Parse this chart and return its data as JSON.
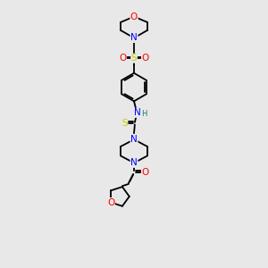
{
  "bg_color": "#e8e8e8",
  "atom_colors": {
    "C": "#000000",
    "N": "#0000ff",
    "O": "#ff0000",
    "S_thio": "#cccc00",
    "S_sulfonyl": "#cccc00",
    "H": "#008080"
  },
  "bond_color": "#000000",
  "lw": 1.3,
  "fontsize": 7.5
}
